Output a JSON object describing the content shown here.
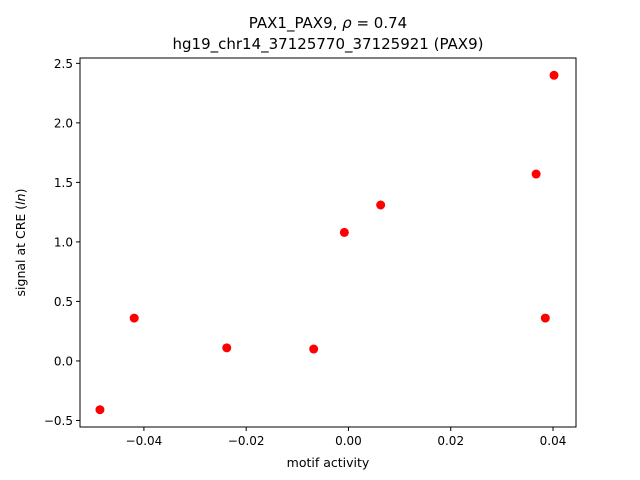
{
  "chart_data": {
    "type": "scatter",
    "title_line1_prefix": "PAX1_PAX9, ",
    "title_line1_rho": "ρ",
    "title_line1_suffix": " = 0.74",
    "title_line2": "hg19_chr14_37125770_37125921 (PAX9)",
    "xlabel": "motif activity",
    "ylabel_prefix": "signal at CRE (",
    "ylabel_italic": "ln",
    "ylabel_suffix": ")",
    "xlim": [
      -0.0525,
      0.0445
    ],
    "ylim": [
      -0.555,
      2.545
    ],
    "xticks": [
      -0.04,
      -0.02,
      0.0,
      0.02,
      0.04
    ],
    "xtick_labels": [
      "−0.04",
      "−0.02",
      "0.00",
      "0.02",
      "0.04"
    ],
    "yticks": [
      -0.5,
      0.0,
      0.5,
      1.0,
      1.5,
      2.0,
      2.5
    ],
    "ytick_labels": [
      "−0.5",
      "0.0",
      "0.5",
      "1.0",
      "1.5",
      "2.0",
      "2.5"
    ],
    "grid": false,
    "marker_color": "#ff0000",
    "x": [
      -0.0486,
      -0.0419,
      -0.0238,
      -0.0068,
      -0.0008,
      0.0063,
      0.0367,
      0.0385,
      0.0402
    ],
    "y": [
      -0.41,
      0.36,
      0.11,
      0.1,
      1.08,
      1.31,
      1.57,
      0.36,
      2.4
    ]
  }
}
